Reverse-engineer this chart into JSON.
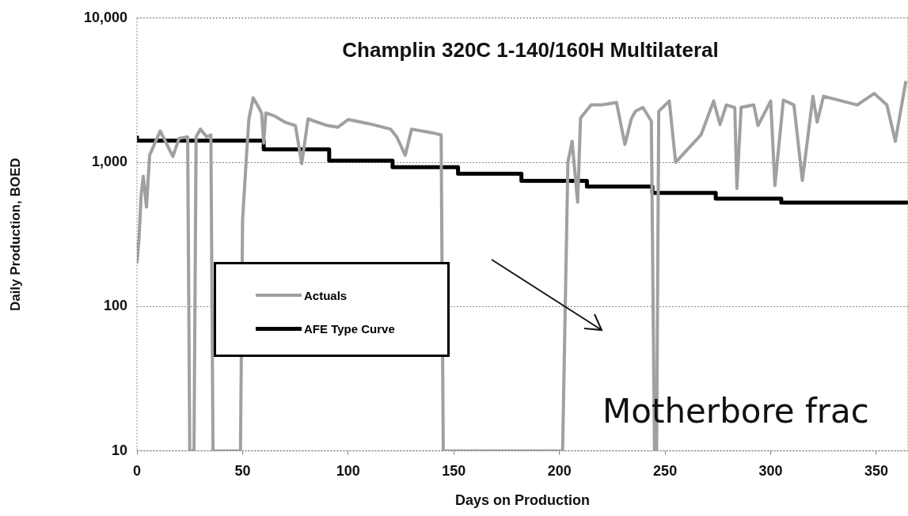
{
  "chart_data": {
    "type": "line",
    "title": "Champlin 320C 1-140/160H Multilateral",
    "xlabel": "Days on Production",
    "ylabel": "Daily Production, BOED",
    "xlim": [
      0,
      365
    ],
    "xticks": [
      0,
      50,
      100,
      150,
      200,
      250,
      300,
      350
    ],
    "ylim": [
      10,
      10000
    ],
    "yticks": [
      10,
      100,
      {
        "value": 1000,
        "label": "1,000"
      },
      {
        "value": 10000,
        "label": "10,000"
      }
    ],
    "log": "y",
    "grid": "y",
    "legend": "center left",
    "marker": "none",
    "annotations": [
      "Motherbore frac"
    ],
    "series": [
      {
        "name": "Actuals",
        "type": "line",
        "color": "#a0a0a0",
        "x": [
          0,
          1,
          2,
          3,
          4.5,
          6,
          11,
          17,
          20,
          24,
          25,
          27,
          28,
          30,
          33,
          35,
          36,
          49,
          50,
          52,
          53,
          55,
          57,
          59,
          60,
          61,
          65,
          70,
          75,
          78,
          81,
          90,
          95,
          100,
          110,
          120,
          123,
          127,
          130,
          140,
          144,
          145,
          201.5,
          204,
          206,
          208.6,
          210,
          215,
          220,
          227,
          231,
          234,
          236,
          239.5,
          243.5,
          245,
          246,
          247,
          252,
          255,
          267,
          273,
          276,
          279,
          283,
          284,
          286,
          292,
          294,
          300,
          302,
          306,
          311,
          315,
          320,
          322,
          325,
          341,
          349,
          355,
          359,
          364
        ],
        "values": [
          200,
          300,
          600,
          800,
          490,
          1120,
          1650,
          1100,
          1470,
          1500,
          10,
          10,
          1500,
          1700,
          1500,
          1550,
          10,
          10,
          400,
          1200,
          2000,
          2800,
          2500,
          2200,
          1360,
          2200,
          2100,
          1900,
          1800,
          980,
          2000,
          1800,
          1750,
          1980,
          1850,
          1700,
          1500,
          1120,
          1700,
          1600,
          1550,
          10,
          10,
          1000,
          1400,
          530,
          2030,
          2500,
          2500,
          2600,
          1330,
          2000,
          2260,
          2400,
          1930,
          10,
          10,
          2260,
          2660,
          1000,
          1550,
          2660,
          1830,
          2500,
          2400,
          660,
          2400,
          2500,
          1800,
          2660,
          690,
          2700,
          2500,
          750,
          2870,
          1900,
          2870,
          2500,
          3000,
          2500,
          1400,
          3660
        ]
      },
      {
        "name": "AFE Type Curve",
        "type": "step",
        "color": "#000000",
        "x": [
          0,
          60,
          91,
          121,
          152,
          182,
          213,
          244,
          274,
          305,
          335,
          365
        ],
        "values": [
          1530,
          1415,
          1228,
          1026,
          925,
          835,
          745,
          680,
          614,
          561,
          526,
          526
        ]
      }
    ]
  }
}
